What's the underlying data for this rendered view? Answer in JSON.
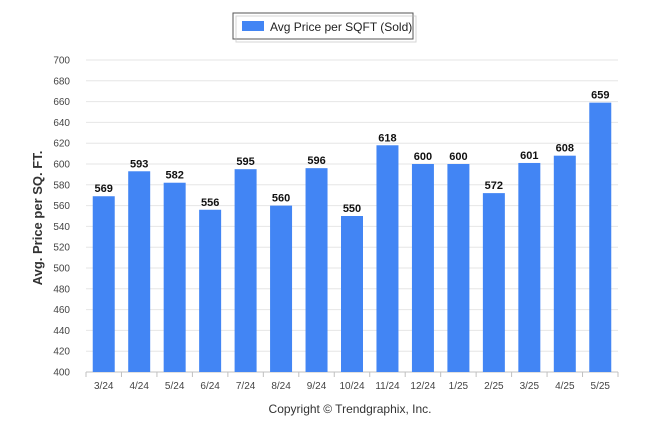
{
  "colors": {
    "bar": "#4285f4",
    "grid": "#e6e6e6",
    "text": "#222222"
  },
  "chart_data": {
    "type": "bar",
    "title": "",
    "categories": [
      "3/24",
      "4/24",
      "5/24",
      "6/24",
      "7/24",
      "8/24",
      "9/24",
      "10/24",
      "11/24",
      "12/24",
      "1/25",
      "2/25",
      "3/25",
      "4/25",
      "5/25"
    ],
    "series": [
      {
        "name": "Avg Price per SQFT (Sold)",
        "values": [
          569,
          593,
          582,
          556,
          595,
          560,
          596,
          550,
          618,
          600,
          600,
          572,
          601,
          608,
          659
        ]
      }
    ],
    "xlabel": "",
    "ylabel": "Avg. Price per SQ. FT.",
    "ylim": [
      400,
      700
    ],
    "yticks": [
      400,
      420,
      440,
      460,
      480,
      500,
      520,
      540,
      560,
      580,
      600,
      620,
      640,
      660,
      680,
      700
    ],
    "grid": true,
    "legend_position": "top-center",
    "footer": "Copyright © Trendgraphix, Inc."
  }
}
